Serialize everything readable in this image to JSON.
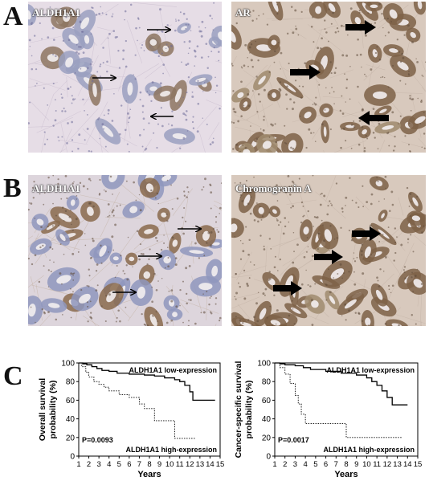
{
  "panels": {
    "A": {
      "letter": "A",
      "left_label": "ALDH1A1",
      "right_label": "AR"
    },
    "B": {
      "letter": "B",
      "left_label": "ALDH1A1",
      "right_label": "Chromogranin A"
    },
    "C": {
      "letter": "C"
    }
  },
  "colors": {
    "tissue_bg": "#d9cfd8",
    "gland_brown": "#8a6a4c",
    "gland_blue": "#9aa0c0",
    "arrow": "#000000"
  },
  "chart_data": [
    {
      "type": "line",
      "step": true,
      "ylabel": "Overall survival probability (%)",
      "xlabel": "Years",
      "xlim": [
        1,
        15
      ],
      "ylim": [
        0,
        100
      ],
      "xticks": [
        1,
        2,
        3,
        4,
        5,
        6,
        7,
        8,
        9,
        10,
        11,
        12,
        13,
        14,
        15
      ],
      "yticks": [
        0,
        20,
        40,
        60,
        80,
        100
      ],
      "pvalue": "P=0.0093",
      "series": [
        {
          "name": "ALDH1A1 low-expression",
          "style": "solid",
          "x": [
            1,
            1.4,
            1.8,
            2.3,
            2.8,
            3.3,
            4.0,
            4.8,
            6.0,
            7.5,
            8.5,
            9.5,
            10.5,
            11.0,
            11.5,
            12.0,
            12.3,
            14.5
          ],
          "y": [
            100,
            99,
            98,
            96,
            94,
            92,
            91,
            89,
            88,
            87,
            86,
            84,
            82,
            80,
            76,
            69,
            60,
            60
          ]
        },
        {
          "name": "ALDH1A1 high-expression",
          "style": "dotted",
          "x": [
            1,
            1.3,
            1.7,
            2.0,
            2.5,
            3.0,
            3.5,
            4.0,
            5.0,
            6.0,
            7.0,
            7.5,
            8.5,
            10.0,
            10.5,
            12.5
          ],
          "y": [
            100,
            96,
            90,
            85,
            80,
            77,
            74,
            70,
            66,
            63,
            56,
            51,
            38,
            38,
            19,
            19
          ]
        }
      ]
    },
    {
      "type": "line",
      "step": true,
      "ylabel": "Cancer-specific survival probability (%)",
      "xlabel": "Years",
      "xlim": [
        1,
        15
      ],
      "ylim": [
        0,
        100
      ],
      "xticks": [
        1,
        2,
        3,
        4,
        5,
        6,
        7,
        8,
        9,
        10,
        11,
        12,
        13,
        14,
        15
      ],
      "yticks": [
        0,
        20,
        40,
        60,
        80,
        100
      ],
      "pvalue": "P=0.0017",
      "series": [
        {
          "name": "ALDH1A1 low-expression",
          "style": "solid",
          "x": [
            1,
            1.5,
            2.0,
            3.0,
            3.8,
            4.5,
            6.0,
            7.5,
            9.0,
            10.0,
            10.5,
            11.0,
            11.5,
            12.0,
            12.5,
            14.0
          ],
          "y": [
            100,
            99,
            98,
            97,
            95,
            93,
            91,
            89,
            87,
            84,
            80,
            76,
            70,
            63,
            55,
            55
          ]
        },
        {
          "name": "ALDH1A1 high-expression",
          "style": "dotted",
          "x": [
            1,
            1.5,
            2.0,
            2.5,
            3.0,
            3.3,
            3.6,
            4.0,
            7.5,
            8.0,
            13.5
          ],
          "y": [
            100,
            95,
            88,
            78,
            65,
            56,
            45,
            35,
            35,
            20,
            20
          ]
        }
      ]
    }
  ]
}
